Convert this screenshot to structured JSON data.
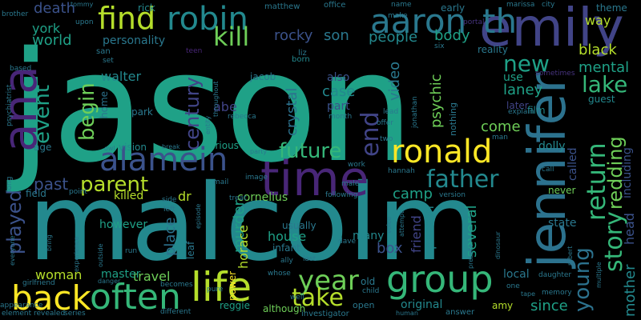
{
  "words": {
    "jason": "jason",
    "malcolm": "malcolm",
    "emily": "emily",
    "jennifer": "jennifer",
    "time": "time",
    "ana": "ana",
    "alamein": "alamein",
    "aaron": "aaron",
    "th": "th",
    "robin": "robin",
    "find": "find",
    "kill": "kill",
    "ronald": "ronald",
    "group": "group",
    "life": "life",
    "back": "back",
    "often": "often",
    "future": "future",
    "father": "father",
    "end": "end",
    "year": "year",
    "take": "take",
    "return": "return",
    "story": "story",
    "young": "young",
    "redding": "redding",
    "lake": "lake",
    "new": "new",
    "event": "event",
    "begin": "begin",
    "parent": "parent",
    "century": "century",
    "played": "played",
    "past": "past",
    "woman": "woman",
    "crystal": "crystal",
    "rocky": "rocky",
    "son": "son",
    "people": "people",
    "body": "body",
    "world": "world",
    "york": "york",
    "death": "death",
    "personality": "personality",
    "walter": "walter",
    "jacob": "jacob",
    "video": "video",
    "case": "case",
    "part": "part",
    "also": "also",
    "psychic": "psychic",
    "mental": "mental",
    "black": "black",
    "laney": "laney",
    "use": "use",
    "way": "way",
    "early": "early",
    "theme": "theme",
    "come": "come",
    "called": "called",
    "dolly": "dolly",
    "camp": "camp",
    "person": "person",
    "friend": "friend",
    "several": "several",
    "box": "box",
    "house": "house",
    "murder": "murder",
    "horace": "horace",
    "place": "place",
    "cornelius": "cornelius",
    "dr": "dr",
    "killed": "killed",
    "however": "however",
    "travel": "travel",
    "master": "master",
    "usually": "usually",
    "many": "many",
    "original": "original",
    "since": "since",
    "local": "local",
    "amy": "amy",
    "mother": "mother",
    "head": "head",
    "including": "including",
    "state": "state",
    "never": "never",
    "guest": "guest",
    "film": "film",
    "later": "later",
    "vision": "vision",
    "various": "various",
    "age": "age",
    "park": "park",
    "home": "home",
    "power": "power",
    "reggie": "reggie",
    "although": "although",
    "infant": "infant",
    "leaf": "leaf",
    "old": "old",
    "abe": "abe",
    "rick": "rick",
    "matthew": "matthew",
    "tommy": "tommy",
    "brother": "brother",
    "upon": "upon",
    "san": "san",
    "teen": "teen",
    "liz": "liz",
    "born": "born",
    "name": "name",
    "office": "office",
    "make": "make",
    "six": "six",
    "marissa": "marissa",
    "city": "city",
    "portal": "portal",
    "reality": "reality",
    "sometimes": "sometimes",
    "explain": "explain",
    "man": "man",
    "nothing": "nothing",
    "jonathan": "jonathan",
    "hannah": "hannah",
    "two": "two",
    "offer": "offer",
    "lead": "lead",
    "month": "month",
    "rebecca": "rebecca",
    "entity": "entity",
    "throughout": "throughout",
    "psychiatrist": "psychiatrist",
    "based": "based",
    "owl": "owl",
    "break": "break",
    "party": "party",
    "image": "image",
    "mail": "mail",
    "male": "male",
    "work": "work",
    "call": "call",
    "version": "version",
    "following": "following",
    "treat": "treat",
    "side": "side",
    "episode": "episode",
    "left": "left",
    "point": "point",
    "field": "field",
    "long": "long",
    "everyone": "everyone",
    "girlfriend": "girlfriend",
    "experience": "experience",
    "danger": "danger",
    "becomes": "becomes",
    "pure": "pure",
    "whose": "whose",
    "ally": "ally",
    "last": "last",
    "child": "child",
    "open": "open",
    "human": "human",
    "answer": "answer",
    "present": "present",
    "attempt": "attempt",
    "voice": "voice",
    "dave": "dave",
    "dinosaur": "dinosaur",
    "robert": "robert",
    "daughter": "daughter",
    "one": "one",
    "tape": "tape",
    "memory": "memory",
    "multiple": "multiple",
    "appearance": "appearance",
    "element": "element",
    "revealed": "revealed",
    "series": "series",
    "different": "different",
    "investigator": "investigator",
    "well": "well",
    "run": "run",
    "bring": "bring",
    "set": "set",
    "outside": "outside"
  },
  "colors": {
    "background": "#000000",
    "palette": [
      "#1fa187",
      "#23898e",
      "#3b528b",
      "#414487",
      "#482677",
      "#46337e",
      "#2c728e",
      "#35b779",
      "#6ece58",
      "#b5de2b",
      "#fde725"
    ]
  }
}
